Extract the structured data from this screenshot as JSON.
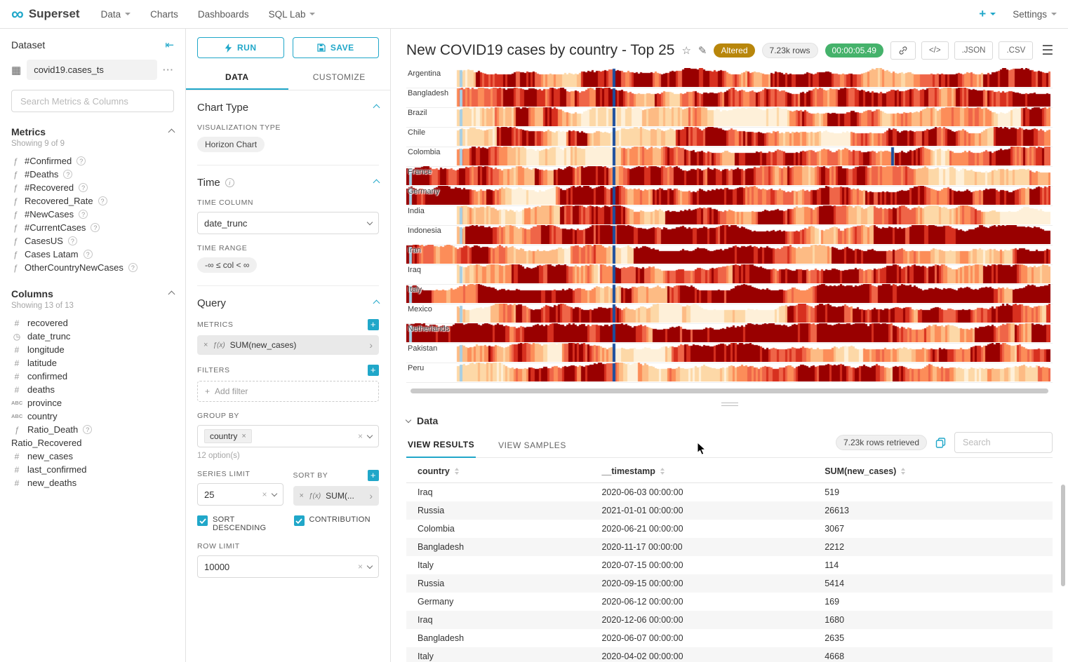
{
  "navbar": {
    "brand": "Superset",
    "menu": [
      {
        "label": "Data",
        "caret": true
      },
      {
        "label": "Charts",
        "caret": false
      },
      {
        "label": "Dashboards",
        "caret": false
      },
      {
        "label": "SQL Lab",
        "caret": true
      }
    ],
    "settings_label": "Settings"
  },
  "dataset_panel": {
    "title": "Dataset",
    "dataset_name": "covid19.cases_ts",
    "search_placeholder": "Search Metrics & Columns",
    "metrics": {
      "title": "Metrics",
      "showing": "Showing 9 of 9",
      "items": [
        {
          "name": "#Confirmed",
          "help": true
        },
        {
          "name": "#Deaths",
          "help": true
        },
        {
          "name": "#Recovered",
          "help": true
        },
        {
          "name": "Recovered_Rate",
          "help": true
        },
        {
          "name": "#NewCases",
          "help": true
        },
        {
          "name": "#CurrentCases",
          "help": true
        },
        {
          "name": "CasesUS",
          "help": true
        },
        {
          "name": "Cases Latam",
          "help": true
        },
        {
          "name": "OtherCountryNewCases",
          "help": true
        }
      ]
    },
    "columns": {
      "title": "Columns",
      "showing": "Showing 13 of 13",
      "items": [
        {
          "name": "recovered",
          "type": "num"
        },
        {
          "name": "date_trunc",
          "type": "time"
        },
        {
          "name": "longitude",
          "type": "num"
        },
        {
          "name": "latitude",
          "type": "num"
        },
        {
          "name": "confirmed",
          "type": "num"
        },
        {
          "name": "deaths",
          "type": "num"
        },
        {
          "name": "province",
          "type": "str"
        },
        {
          "name": "country",
          "type": "str"
        },
        {
          "name": "Ratio_Death",
          "type": "fx",
          "help": true
        },
        {
          "name": "Ratio_Recovered",
          "type": "none"
        },
        {
          "name": "new_cases",
          "type": "num"
        },
        {
          "name": "last_confirmed",
          "type": "num"
        },
        {
          "name": "new_deaths",
          "type": "num"
        }
      ]
    }
  },
  "controls": {
    "run_label": "RUN",
    "save_label": "SAVE",
    "tabs": [
      "DATA",
      "CUSTOMIZE"
    ],
    "chart_type_section": "Chart Type",
    "visualization_type_label": "VISUALIZATION TYPE",
    "visualization_type_value": "Horizon Chart",
    "time_section": "Time",
    "time_column_label": "TIME COLUMN",
    "time_column_value": "date_trunc",
    "time_range_label": "TIME RANGE",
    "time_range_value": "-∞ ≤ col < ∞",
    "query_section": "Query",
    "metrics_label": "METRICS",
    "metric_value": "SUM(new_cases)",
    "filters_label": "FILTERS",
    "add_filter_label": "Add filter",
    "group_by_label": "GROUP BY",
    "group_by_value": "country",
    "group_by_hint": "12 option(s)",
    "series_limit_label": "SERIES LIMIT",
    "series_limit_value": "25",
    "sort_by_label": "SORT BY",
    "sort_by_value": "SUM(...",
    "sort_descending_label": "SORT DESCENDING",
    "contribution_label": "CONTRIBUTION",
    "row_limit_label": "ROW LIMIT",
    "row_limit_value": "10000"
  },
  "chart_header": {
    "title": "New COVID19 cases by country - Top 25",
    "altered_badge": "Altered",
    "rows_badge": "7.23k rows",
    "timer_badge": "00:00:05.49",
    "json_label": ".JSON",
    "csv_label": ".CSV"
  },
  "chart_data": {
    "type": "horizon",
    "metric": "SUM(new_cases)",
    "time_column": "date_trunc",
    "series_limit": 25,
    "visible_series": [
      "Argentina",
      "Bangladesh",
      "Brazil",
      "Chile",
      "Colombia",
      "France",
      "Germany",
      "India",
      "Indonesia",
      "Iran",
      "Iraq",
      "Italy",
      "Mexico",
      "Netherlands",
      "Pakistan",
      "Peru"
    ],
    "palette": {
      "oranges": [
        "#fef0d9",
        "#fdd8a7",
        "#fdbb84",
        "#fc8d59",
        "#ef6548",
        "#d7301f",
        "#990000"
      ],
      "light_blue": "#a6cee3",
      "dark_blue": "#1c4e9e"
    },
    "rows": [
      {
        "name": "Argentina",
        "start": 0.078
      },
      {
        "name": "Bangladesh",
        "start": 0.078
      },
      {
        "name": "Brazil",
        "start": 0.078
      },
      {
        "name": "Chile",
        "start": 0.078,
        "red_at": [
          0.272
        ]
      },
      {
        "name": "Colombia",
        "start": 0.078,
        "extra_spikes": [
          0.753
        ]
      },
      {
        "name": "France",
        "start": 0,
        "red_start": true
      },
      {
        "name": "Germany",
        "start": 0,
        "red_start": true
      },
      {
        "name": "India",
        "start": 0.078,
        "red_at": [
          0.41,
          0.43
        ]
      },
      {
        "name": "Indonesia",
        "start": 0.078,
        "red_end": true,
        "hot": true
      },
      {
        "name": "Iran",
        "start": 0,
        "red_start": true,
        "hot": true
      },
      {
        "name": "Iraq",
        "start": 0.078
      },
      {
        "name": "Italy",
        "start": 0,
        "red_start": true,
        "red_at": [
          0.74,
          0.77,
          0.8
        ],
        "hot": true
      },
      {
        "name": "Mexico",
        "start": 0.078
      },
      {
        "name": "Netherlands",
        "start": 0,
        "red_start": true,
        "red_at": [
          0.7,
          0.9
        ],
        "hot": true
      },
      {
        "name": "Pakistan",
        "start": 0.078
      },
      {
        "name": "Peru",
        "start": 0.078
      }
    ]
  },
  "results": {
    "section_title": "Data",
    "tabs": [
      "VIEW RESULTS",
      "VIEW SAMPLES"
    ],
    "rows_retrieved": "7.23k rows retrieved",
    "search_placeholder": "Search",
    "columns": [
      "country",
      "__timestamp",
      "SUM(new_cases)"
    ],
    "rows": [
      [
        "Iraq",
        "2020-06-03 00:00:00",
        "519"
      ],
      [
        "Russia",
        "2021-01-01 00:00:00",
        "26613"
      ],
      [
        "Colombia",
        "2020-06-21 00:00:00",
        "3067"
      ],
      [
        "Bangladesh",
        "2020-11-17 00:00:00",
        "2212"
      ],
      [
        "Italy",
        "2020-07-15 00:00:00",
        "114"
      ],
      [
        "Russia",
        "2020-09-15 00:00:00",
        "5414"
      ],
      [
        "Germany",
        "2020-06-12 00:00:00",
        "169"
      ],
      [
        "Iraq",
        "2020-12-06 00:00:00",
        "1680"
      ],
      [
        "Bangladesh",
        "2020-06-07 00:00:00",
        "2635"
      ],
      [
        "Italy",
        "2020-04-02 00:00:00",
        "4668"
      ]
    ]
  }
}
